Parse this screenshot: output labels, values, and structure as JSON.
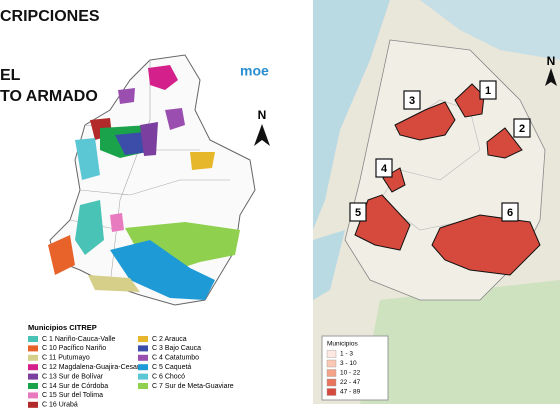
{
  "left_panel": {
    "title_lines": [
      "CRIPCIONES",
      "EL",
      "TO ARMADO"
    ],
    "logo": "moe",
    "north": "N",
    "legend": {
      "title": "Municipios CITREP",
      "items": [
        {
          "label": "C 1 Nariño-Cauca-Valle",
          "color": "#48c3b5"
        },
        {
          "label": "C 10 Pacífico Nariño",
          "color": "#e8632a"
        },
        {
          "label": "C 11 Putumayo",
          "color": "#d6cf8a"
        },
        {
          "label": "C 12 Magdalena-Guajira-Cesar",
          "color": "#d4208a"
        },
        {
          "label": "C 13 Sur de Bolívar",
          "color": "#7b3fa0"
        },
        {
          "label": "C 14 Sur de Córdoba",
          "color": "#1aa34a"
        },
        {
          "label": "C 15 Sur del Tolima",
          "color": "#e87ac0"
        },
        {
          "label": "C 16 Urabá",
          "color": "#b22a2a"
        },
        {
          "label": "C 2 Arauca",
          "color": "#e6b72a"
        },
        {
          "label": "C 3 Bajo Cauca",
          "color": "#3b4da8"
        },
        {
          "label": "C 4 Catatumbo",
          "color": "#9a4fb0"
        },
        {
          "label": "C 5 Caquetá",
          "color": "#1e9ad6"
        },
        {
          "label": "C 6 Chocó",
          "color": "#5bc7d4"
        },
        {
          "label": "C 7 Sur de Meta-Guaviare",
          "color": "#8fd14f"
        }
      ]
    }
  },
  "right_panel": {
    "zone_labels": [
      "1",
      "2",
      "3",
      "4",
      "5",
      "6"
    ],
    "north": "N",
    "legend": {
      "title": "Municipios",
      "items": [
        {
          "label": "1 - 3",
          "color": "#fde9e1"
        },
        {
          "label": "3 - 10",
          "color": "#fbc8b4"
        },
        {
          "label": "10 - 22",
          "color": "#f4a389"
        },
        {
          "label": "22 - 47",
          "color": "#e9755f"
        },
        {
          "label": "47 - 89",
          "color": "#d6493d"
        }
      ]
    }
  }
}
